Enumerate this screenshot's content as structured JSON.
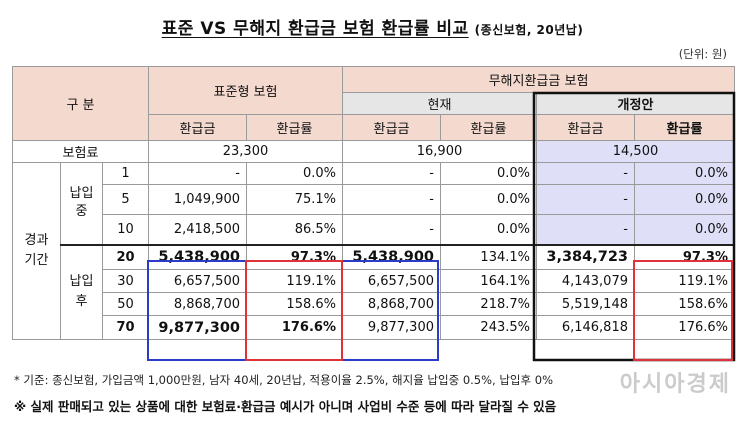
{
  "title": {
    "main": "표준 VS 무해지 환급금 보험 환급률 비교",
    "sub": "(종신보험, 20년납)"
  },
  "unit": "(단위: 원)",
  "header": {
    "category": "구 분",
    "standard": "표준형 보험",
    "nonrefund": "무해지환급금 보험",
    "current": "현재",
    "revised": "개정안",
    "refund_amount": "환급금",
    "refund_rate": "환급률"
  },
  "premium": {
    "label": "보험료",
    "standard": "23,300",
    "current": "16,900",
    "revised": "14,500"
  },
  "period_label": "경과 기간",
  "during_label": "납입 중",
  "after_label": "납입 후",
  "rows": [
    {
      "year": "1",
      "std_amt": "-",
      "std_rate": "0.0%",
      "cur_amt": "-",
      "cur_rate": "0.0%",
      "rev_amt": "-",
      "rev_rate": "0.0%"
    },
    {
      "year": "5",
      "std_amt": "1,049,900",
      "std_rate": "75.1%",
      "cur_amt": "-",
      "cur_rate": "0.0%",
      "rev_amt": "-",
      "rev_rate": "0.0%"
    },
    {
      "year": "10",
      "std_amt": "2,418,500",
      "std_rate": "86.5%",
      "cur_amt": "-",
      "cur_rate": "0.0%",
      "rev_amt": "-",
      "rev_rate": "0.0%"
    },
    {
      "year": "20",
      "std_amt": "5,438,900",
      "std_rate": "97.3%",
      "cur_amt": "5,438,900",
      "cur_rate": "134.1%",
      "rev_amt": "3,384,723",
      "rev_rate": "97.3%"
    },
    {
      "year": "30",
      "std_amt": "6,657,500",
      "std_rate": "119.1%",
      "cur_amt": "6,657,500",
      "cur_rate": "164.1%",
      "rev_amt": "4,143,079",
      "rev_rate": "119.1%"
    },
    {
      "year": "50",
      "std_amt": "8,868,700",
      "std_rate": "158.6%",
      "cur_amt": "8,868,700",
      "cur_rate": "218.7%",
      "rev_amt": "5,519,148",
      "rev_rate": "158.6%"
    },
    {
      "year": "70",
      "std_amt": "9,877,300",
      "std_rate": "176.6%",
      "cur_amt": "9,877,300",
      "cur_rate": "243.5%",
      "rev_amt": "6,146,818",
      "rev_rate": "176.6%"
    }
  ],
  "notes": {
    "basis": "* 기준: 종신보험, 가입금액 1,000만원, 남자 40세, 20년납, 적용이율 2.5%, 해지율 납입중 0.5%, 납입후 0%",
    "disclaimer": "※ 실제 판매되고 있는 상품에 대한 보험료·환급금 예시가 아니며 사업비 수준 등에 따라 달라질 수 있음"
  },
  "watermark": "아시아경제",
  "colors": {
    "header_bg": "#f4d9cf",
    "subheader_bg": "#e7e6e6",
    "revised_bg": "#dfe0f7",
    "blue_box": "#2b3cc8",
    "red_box": "#e0303a"
  }
}
